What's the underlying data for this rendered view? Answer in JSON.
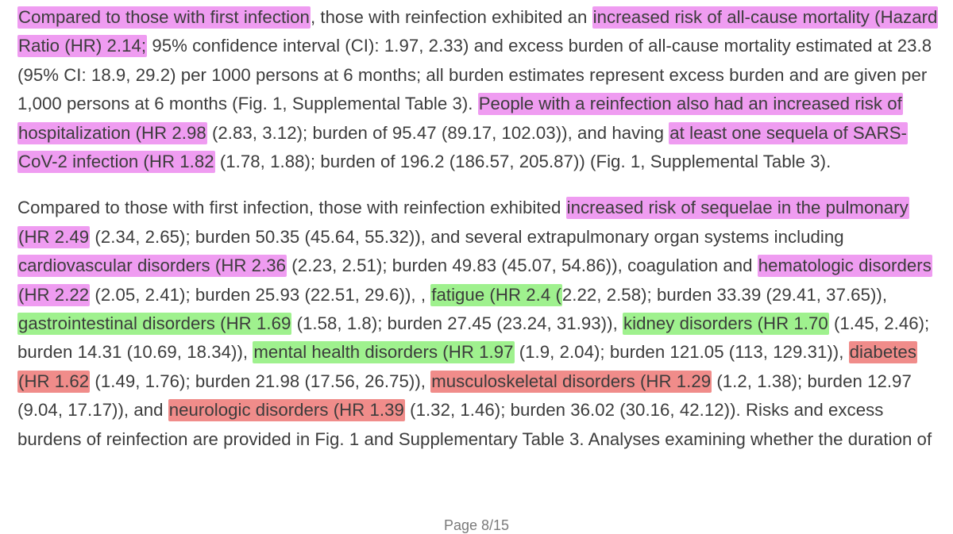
{
  "document": {
    "paragraphs": [
      {
        "segments": [
          {
            "text": "Compared to those with first infection",
            "hl": "magenta"
          },
          {
            "text": ", those with reinfection exhibited an "
          },
          {
            "text": "increased risk of all-cause mortality (Hazard Ratio (HR) 2.14;",
            "hl": "magenta"
          },
          {
            "text": " 95% confidence interval (CI): 1.97, 2.33) and excess burden of all-cause mortality estimated at 23.8 (95% CI: 18.9, 29.2) per 1000 persons at 6 months; all burden estimates represent excess burden and are given per 1,000 persons at 6 months (Fig. 1, Supplemental Table 3). "
          },
          {
            "text": "People with a reinfection also had an increased risk of hospitalization (HR 2.98",
            "hl": "magenta"
          },
          {
            "text": " (2.83, 3.12); burden of 95.47 (89.17, 102.03)), and having "
          },
          {
            "text": "at least one sequela of SARS-CoV-2 infection (HR 1.82",
            "hl": "magenta"
          },
          {
            "text": " (1.78, 1.88); burden of 196.2 (186.57, 205.87)) (Fig. 1, Supplemental Table 3)."
          }
        ]
      },
      {
        "segments": [
          {
            "text": "Compared to those with first infection, those with reinfection exhibited "
          },
          {
            "text": "increased risk of sequelae in the pulmonary (HR  2.49",
            "hl": "magenta"
          },
          {
            "text": " (2.34, 2.65); burden 50.35 (45.64, 55.32)), and several extrapulmonary organ systems including "
          },
          {
            "text": "cardiovascular disorders (HR 2.36",
            "hl": "magenta"
          },
          {
            "text": " (2.23, 2.51); burden 49.83 (45.07, 54.86)), coagulation and "
          },
          {
            "text": "hematologic disorders (HR 2.22",
            "hl": "magenta"
          },
          {
            "text": " (2.05, 2.41); burden 25.93 (22.51, 29.6)), , "
          },
          {
            "text": "fatigue (HR 2.4 (",
            "hl": "green"
          },
          {
            "text": "2.22, 2.58); burden 33.39 (29.41, 37.65)), "
          },
          {
            "text": "gastrointestinal disorders (HR 1.69",
            "hl": "green"
          },
          {
            "text": " (1.58, 1.8); burden 27.45 (23.24, 31.93)), "
          },
          {
            "text": "kidney disorders (HR 1.70",
            "hl": "green"
          },
          {
            "text": " (1.45, 2.46); burden 14.31 (10.69, 18.34)), "
          },
          {
            "text": "mental health disorders (HR 1.97",
            "hl": "green"
          },
          {
            "text": " (1.9, 2.04); burden 121.05 (113, 129.31)), "
          },
          {
            "text": "diabetes (HR 1.62",
            "hl": "red"
          },
          {
            "text": " (1.49, 1.76); burden 21.98 (17.56, 26.75)), "
          },
          {
            "text": "musculoskeletal disorders (HR 1.29",
            "hl": "red"
          },
          {
            "text": " (1.2, 1.38); burden 12.97 (9.04, 17.17)), and "
          },
          {
            "text": "neurologic disorders (HR 1.39",
            "hl": "red"
          },
          {
            "text": " (1.32, 1.46); burden 36.02 (30.16, 42.12)). Risks and excess burdens of reinfection are provided in Fig. 1 and Supplementary Table 3. Analyses examining whether the duration of"
          }
        ]
      }
    ],
    "footer": "Page 8/15"
  },
  "highlight_colors": {
    "magenta": "#ef9cf1",
    "green": "#9ff18e",
    "red": "#f08c8a"
  }
}
